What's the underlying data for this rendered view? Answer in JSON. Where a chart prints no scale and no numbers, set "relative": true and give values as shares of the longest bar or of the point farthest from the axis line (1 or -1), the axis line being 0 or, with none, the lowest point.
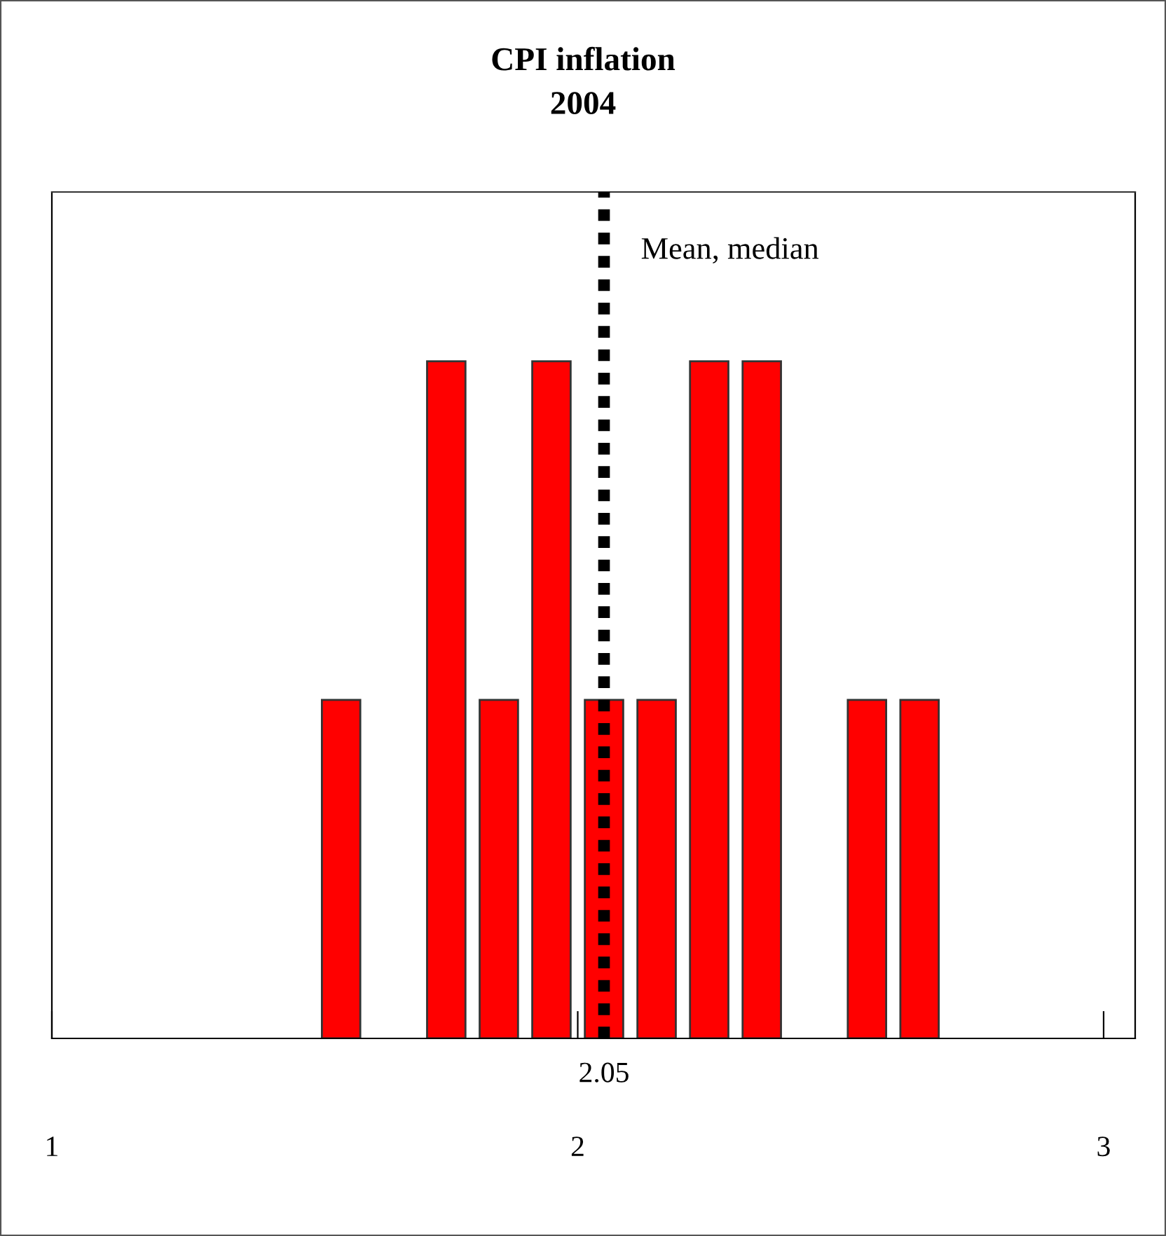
{
  "chart_data": {
    "type": "bar",
    "title": "CPI inflation\n2004",
    "x": [
      1.55,
      1.75,
      1.85,
      1.95,
      2.05,
      2.15,
      2.25,
      2.35,
      2.55,
      2.65
    ],
    "values": [
      0.5,
      1,
      0.5,
      1,
      0.5,
      0.5,
      1,
      1,
      0.5,
      0.5
    ],
    "color": "#ff0000",
    "relative": true,
    "xlim": [
      1,
      3.06
    ],
    "xticks": [
      1,
      2,
      3
    ],
    "ref_lines": [
      {
        "axis": "x",
        "value": 2.05,
        "label": "Mean, median",
        "color": "#000000",
        "line_style": "dotted"
      }
    ],
    "annotations": [
      "2.05"
    ],
    "grid": false,
    "legend": false
  }
}
